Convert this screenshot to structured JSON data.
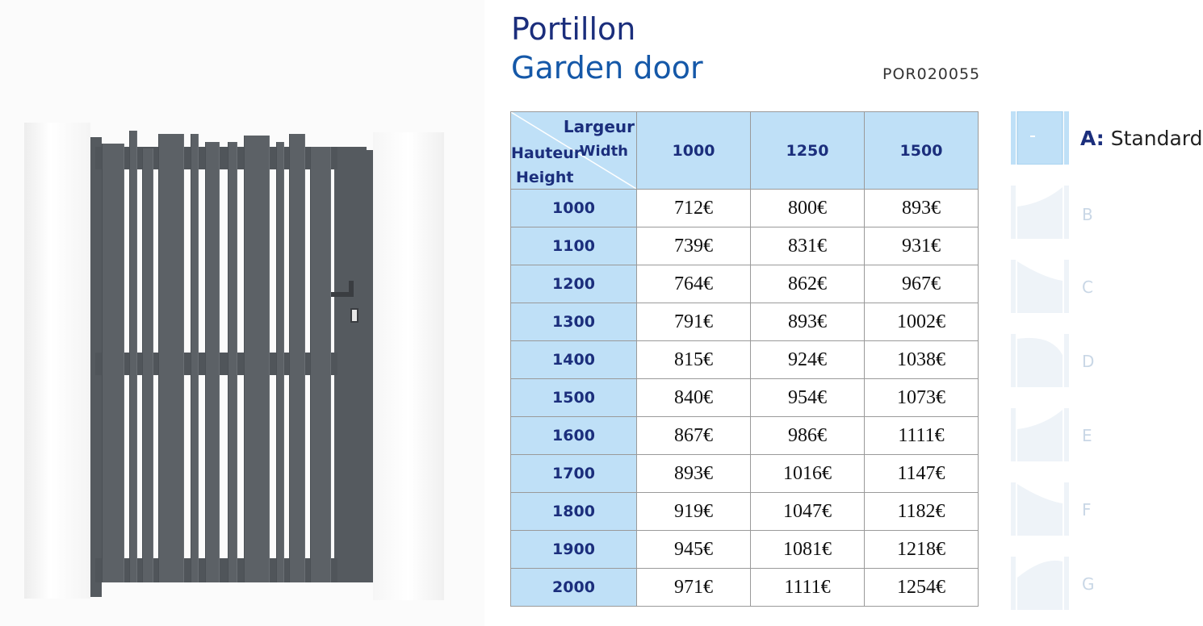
{
  "header": {
    "title_fr": "Portillon",
    "title_en": "Garden door",
    "code": "POR020055"
  },
  "table": {
    "corner": {
      "largeur": "Largeur",
      "width": "Width",
      "hauteur": "Hauteur",
      "height": "Height"
    },
    "columns": [
      "1000",
      "1250",
      "1500"
    ],
    "rows": [
      {
        "height": "1000",
        "prices": [
          "712€",
          "800€",
          "893€"
        ]
      },
      {
        "height": "1100",
        "prices": [
          "739€",
          "831€",
          "931€"
        ]
      },
      {
        "height": "1200",
        "prices": [
          "764€",
          "862€",
          "967€"
        ]
      },
      {
        "height": "1300",
        "prices": [
          "791€",
          "893€",
          "1002€"
        ]
      },
      {
        "height": "1400",
        "prices": [
          "815€",
          "924€",
          "1038€"
        ]
      },
      {
        "height": "1500",
        "prices": [
          "840€",
          "954€",
          "1073€"
        ]
      },
      {
        "height": "1600",
        "prices": [
          "867€",
          "986€",
          "1111€"
        ]
      },
      {
        "height": "1700",
        "prices": [
          "893€",
          "1016€",
          "1147€"
        ]
      },
      {
        "height": "1800",
        "prices": [
          "919€",
          "1047€",
          "1182€"
        ]
      },
      {
        "height": "1900",
        "prices": [
          "945€",
          "1081€",
          "1218€"
        ]
      },
      {
        "height": "2000",
        "prices": [
          "971€",
          "1111€",
          "1254€"
        ]
      }
    ]
  },
  "shapes": {
    "a_letter": "A:",
    "a_name": "Standard",
    "others": [
      "B",
      "C",
      "D",
      "E",
      "F",
      "G"
    ]
  },
  "colors": {
    "header_blue": "#bfe0f7",
    "title_navy": "#1b2e7c",
    "title_blue": "#1558a8",
    "gate_gray": "#5c6166"
  }
}
